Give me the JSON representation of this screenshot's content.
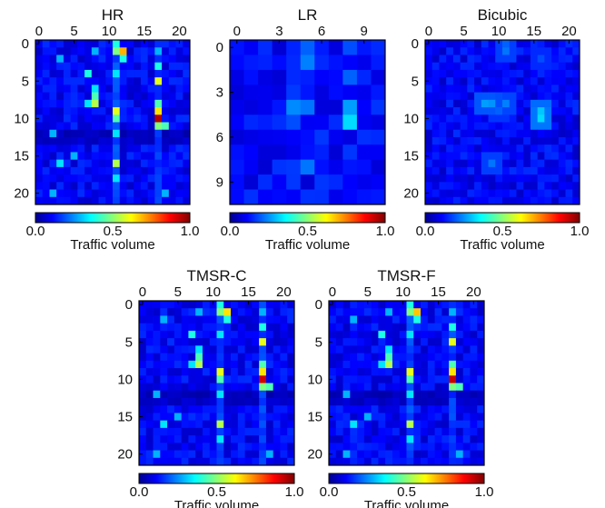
{
  "figure": {
    "colormap": "jet",
    "colorbar_ticks": [
      "0.0",
      "0.5",
      "1.0"
    ],
    "colorbar_label": "Traffic volume"
  },
  "chart_data": [
    {
      "type": "heatmap",
      "title": "HR",
      "size": 22,
      "x_ticks": [
        0,
        5,
        10,
        15,
        20
      ],
      "y_ticks": [
        0,
        5,
        10,
        15,
        20
      ],
      "vrange": [
        0.0,
        1.0
      ],
      "background": 0.12,
      "row_values": [
        {
          "index": 12,
          "value": 0.06
        },
        {
          "index": 13,
          "value": 0.07
        }
      ],
      "column_values": [
        {
          "index": 11,
          "value": 0.19
        },
        {
          "index": 17,
          "value": 0.18
        }
      ],
      "cells": [
        [
          0,
          11,
          0.4
        ],
        [
          1,
          11,
          0.5
        ],
        [
          1,
          12,
          0.7
        ],
        [
          1,
          17,
          0.3
        ],
        [
          2,
          3,
          0.3
        ],
        [
          2,
          12,
          0.4
        ],
        [
          3,
          17,
          0.4
        ],
        [
          4,
          7,
          0.4
        ],
        [
          4,
          11,
          0.35
        ],
        [
          5,
          17,
          0.6
        ],
        [
          6,
          8,
          0.35
        ],
        [
          7,
          8,
          0.45
        ],
        [
          8,
          8,
          0.55
        ],
        [
          8,
          7,
          0.35
        ],
        [
          8,
          17,
          0.45
        ],
        [
          9,
          11,
          0.6
        ],
        [
          9,
          17,
          0.65
        ],
        [
          10,
          11,
          0.45
        ],
        [
          10,
          17,
          0.95
        ],
        [
          11,
          17,
          0.5
        ],
        [
          11,
          18,
          0.45
        ],
        [
          12,
          11,
          0.35
        ],
        [
          12,
          2,
          0.3
        ],
        [
          16,
          11,
          0.55
        ],
        [
          16,
          3,
          0.35
        ],
        [
          18,
          11,
          0.35
        ],
        [
          20,
          2,
          0.3
        ],
        [
          20,
          18,
          0.3
        ],
        [
          1,
          8,
          0.3
        ],
        [
          15,
          5,
          0.3
        ]
      ]
    },
    {
      "type": "heatmap",
      "title": "LR",
      "size": 11,
      "x_ticks": [
        0,
        3,
        6,
        9
      ],
      "y_ticks": [
        0,
        3,
        6,
        9
      ],
      "vrange": [
        0.0,
        1.0
      ],
      "background": 0.13,
      "cells": [
        [
          0,
          5,
          0.22
        ],
        [
          1,
          5,
          0.25
        ],
        [
          0,
          8,
          0.2
        ],
        [
          2,
          8,
          0.22
        ],
        [
          4,
          4,
          0.26
        ],
        [
          4,
          8,
          0.28
        ],
        [
          5,
          8,
          0.34
        ],
        [
          4,
          5,
          0.24
        ],
        [
          5,
          4,
          0.2
        ],
        [
          8,
          5,
          0.24
        ],
        [
          8,
          4,
          0.18
        ],
        [
          7,
          2,
          0.09
        ],
        [
          7,
          3,
          0.09
        ],
        [
          8,
          10,
          0.09
        ],
        [
          3,
          0,
          0.09
        ],
        [
          6,
          0,
          0.09
        ]
      ]
    },
    {
      "type": "heatmap",
      "title": "Bicubic",
      "size": 22,
      "x_ticks": [
        0,
        5,
        10,
        15,
        20
      ],
      "y_ticks": [
        0,
        5,
        10,
        15,
        20
      ],
      "vrange": [
        0.0,
        1.0
      ],
      "background": 0.12,
      "smooth": true,
      "cells": [
        [
          0,
          11,
          0.22
        ],
        [
          1,
          11,
          0.24
        ],
        [
          8,
          8,
          0.28
        ],
        [
          8,
          9,
          0.27
        ],
        [
          8,
          11,
          0.25
        ],
        [
          9,
          16,
          0.32
        ],
        [
          10,
          16,
          0.34
        ],
        [
          16,
          9,
          0.24
        ],
        [
          2,
          16,
          0.2
        ],
        [
          9,
          10,
          0.22
        ]
      ]
    },
    {
      "type": "heatmap",
      "title": "TMSR-C",
      "size": 22,
      "x_ticks": [
        0,
        5,
        10,
        15,
        20
      ],
      "y_ticks": [
        0,
        5,
        10,
        15,
        20
      ],
      "vrange": [
        0.0,
        1.0
      ],
      "background": 0.12,
      "row_values": [
        {
          "index": 12,
          "value": 0.06
        },
        {
          "index": 13,
          "value": 0.07
        }
      ],
      "column_values": [
        {
          "index": 11,
          "value": 0.19
        },
        {
          "index": 17,
          "value": 0.18
        }
      ],
      "cells": [
        [
          0,
          11,
          0.4
        ],
        [
          1,
          11,
          0.5
        ],
        [
          1,
          12,
          0.65
        ],
        [
          1,
          17,
          0.3
        ],
        [
          2,
          3,
          0.3
        ],
        [
          2,
          12,
          0.4
        ],
        [
          3,
          17,
          0.4
        ],
        [
          4,
          7,
          0.4
        ],
        [
          4,
          11,
          0.35
        ],
        [
          5,
          17,
          0.6
        ],
        [
          6,
          8,
          0.35
        ],
        [
          7,
          8,
          0.45
        ],
        [
          8,
          8,
          0.55
        ],
        [
          8,
          7,
          0.35
        ],
        [
          8,
          17,
          0.45
        ],
        [
          9,
          11,
          0.6
        ],
        [
          9,
          17,
          0.65
        ],
        [
          10,
          11,
          0.45
        ],
        [
          10,
          17,
          0.92
        ],
        [
          11,
          17,
          0.5
        ],
        [
          11,
          18,
          0.45
        ],
        [
          12,
          11,
          0.35
        ],
        [
          12,
          2,
          0.3
        ],
        [
          16,
          11,
          0.55
        ],
        [
          16,
          3,
          0.35
        ],
        [
          18,
          11,
          0.35
        ],
        [
          20,
          2,
          0.3
        ],
        [
          20,
          18,
          0.3
        ],
        [
          1,
          8,
          0.3
        ],
        [
          15,
          5,
          0.3
        ]
      ]
    },
    {
      "type": "heatmap",
      "title": "TMSR-F",
      "size": 22,
      "x_ticks": [
        0,
        5,
        10,
        15,
        20
      ],
      "y_ticks": [
        0,
        5,
        10,
        15,
        20
      ],
      "vrange": [
        0.0,
        1.0
      ],
      "background": 0.12,
      "row_values": [
        {
          "index": 12,
          "value": 0.06
        },
        {
          "index": 13,
          "value": 0.07
        }
      ],
      "column_values": [
        {
          "index": 11,
          "value": 0.19
        },
        {
          "index": 17,
          "value": 0.18
        }
      ],
      "cells": [
        [
          0,
          11,
          0.4
        ],
        [
          1,
          11,
          0.5
        ],
        [
          1,
          12,
          0.68
        ],
        [
          1,
          17,
          0.3
        ],
        [
          2,
          3,
          0.3
        ],
        [
          2,
          12,
          0.4
        ],
        [
          3,
          17,
          0.4
        ],
        [
          4,
          7,
          0.4
        ],
        [
          4,
          11,
          0.35
        ],
        [
          5,
          17,
          0.6
        ],
        [
          6,
          8,
          0.35
        ],
        [
          7,
          8,
          0.45
        ],
        [
          8,
          8,
          0.55
        ],
        [
          8,
          7,
          0.35
        ],
        [
          8,
          17,
          0.45
        ],
        [
          9,
          11,
          0.6
        ],
        [
          9,
          17,
          0.65
        ],
        [
          10,
          11,
          0.45
        ],
        [
          10,
          17,
          0.93
        ],
        [
          11,
          17,
          0.5
        ],
        [
          11,
          18,
          0.45
        ],
        [
          12,
          11,
          0.35
        ],
        [
          12,
          2,
          0.3
        ],
        [
          16,
          11,
          0.55
        ],
        [
          16,
          3,
          0.35
        ],
        [
          18,
          11,
          0.35
        ],
        [
          20,
          2,
          0.3
        ],
        [
          20,
          18,
          0.3
        ],
        [
          1,
          8,
          0.3
        ],
        [
          15,
          5,
          0.3
        ]
      ]
    }
  ]
}
